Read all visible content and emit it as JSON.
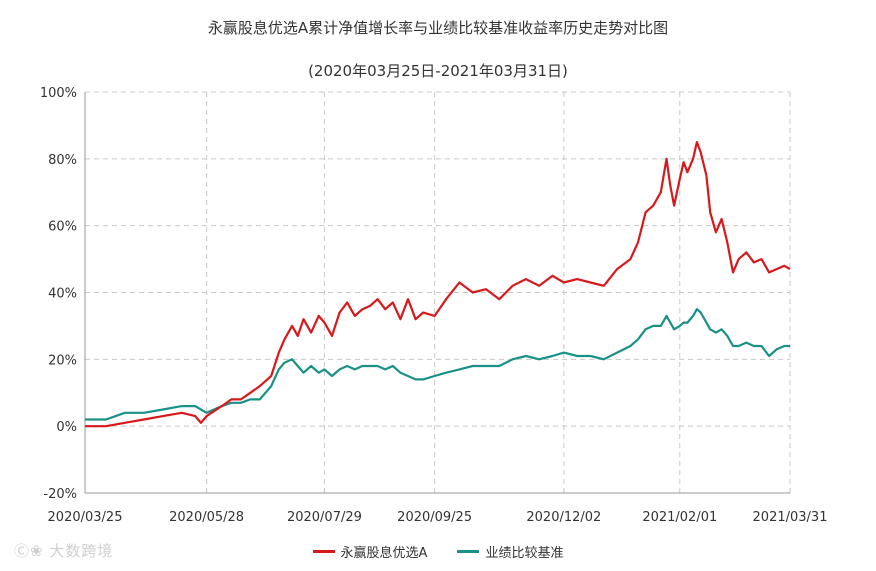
{
  "chart_data": {
    "type": "line",
    "title": "永赢股息优选A累计净值增长率与业绩比较基准收益率历史走势对比图",
    "subtitle": "(2020年03月25日-2021年03月31日)",
    "ylim": [
      -20,
      100
    ],
    "y_ticks": [
      "100%",
      "80%",
      "60%",
      "40%",
      "20%",
      "0%",
      "-20%"
    ],
    "y_tick_values": [
      100,
      80,
      60,
      40,
      20,
      0,
      -20
    ],
    "x_ticks": [
      "2020/03/25",
      "2020/05/28",
      "2020/07/29",
      "2020/09/25",
      "2020/12/02",
      "2021/02/01",
      "2021/03/31"
    ],
    "x_tick_dates": [
      "2020-03-25",
      "2020-05-28",
      "2020-07-29",
      "2020-09-25",
      "2020-12-02",
      "2021-02-01",
      "2021-03-31"
    ],
    "grid": true,
    "legend_position": "bottom",
    "series": [
      {
        "name": "永赢股息优选A",
        "color": "#d7191c",
        "points": [
          [
            "2020-03-25",
            0
          ],
          [
            "2020-04-05",
            0
          ],
          [
            "2020-04-15",
            1
          ],
          [
            "2020-04-25",
            2
          ],
          [
            "2020-05-05",
            3
          ],
          [
            "2020-05-15",
            4
          ],
          [
            "2020-05-22",
            3
          ],
          [
            "2020-05-25",
            1
          ],
          [
            "2020-05-28",
            3
          ],
          [
            "2020-06-05",
            6
          ],
          [
            "2020-06-10",
            8
          ],
          [
            "2020-06-15",
            8
          ],
          [
            "2020-06-20",
            10
          ],
          [
            "2020-06-25",
            12
          ],
          [
            "2020-07-01",
            15
          ],
          [
            "2020-07-05",
            22
          ],
          [
            "2020-07-08",
            26
          ],
          [
            "2020-07-12",
            30
          ],
          [
            "2020-07-15",
            27
          ],
          [
            "2020-07-18",
            32
          ],
          [
            "2020-07-22",
            28
          ],
          [
            "2020-07-26",
            33
          ],
          [
            "2020-07-29",
            31
          ],
          [
            "2020-08-02",
            27
          ],
          [
            "2020-08-06",
            34
          ],
          [
            "2020-08-10",
            37
          ],
          [
            "2020-08-14",
            33
          ],
          [
            "2020-08-18",
            35
          ],
          [
            "2020-08-22",
            36
          ],
          [
            "2020-08-26",
            38
          ],
          [
            "2020-08-30",
            35
          ],
          [
            "2020-09-03",
            37
          ],
          [
            "2020-09-07",
            32
          ],
          [
            "2020-09-11",
            38
          ],
          [
            "2020-09-15",
            32
          ],
          [
            "2020-09-19",
            34
          ],
          [
            "2020-09-25",
            33
          ],
          [
            "2020-10-01",
            38
          ],
          [
            "2020-10-08",
            43
          ],
          [
            "2020-10-15",
            40
          ],
          [
            "2020-10-22",
            41
          ],
          [
            "2020-10-29",
            38
          ],
          [
            "2020-11-05",
            42
          ],
          [
            "2020-11-12",
            44
          ],
          [
            "2020-11-19",
            42
          ],
          [
            "2020-11-26",
            45
          ],
          [
            "2020-12-02",
            43
          ],
          [
            "2020-12-09",
            44
          ],
          [
            "2020-12-16",
            43
          ],
          [
            "2020-12-23",
            42
          ],
          [
            "2020-12-30",
            47
          ],
          [
            "2021-01-06",
            50
          ],
          [
            "2021-01-10",
            55
          ],
          [
            "2021-01-14",
            64
          ],
          [
            "2021-01-18",
            66
          ],
          [
            "2021-01-22",
            70
          ],
          [
            "2021-01-25",
            80
          ],
          [
            "2021-01-27",
            72
          ],
          [
            "2021-01-29",
            66
          ],
          [
            "2021-02-01",
            74
          ],
          [
            "2021-02-03",
            79
          ],
          [
            "2021-02-05",
            76
          ],
          [
            "2021-02-08",
            80
          ],
          [
            "2021-02-10",
            85
          ],
          [
            "2021-02-12",
            82
          ],
          [
            "2021-02-15",
            75
          ],
          [
            "2021-02-17",
            64
          ],
          [
            "2021-02-20",
            58
          ],
          [
            "2021-02-23",
            62
          ],
          [
            "2021-02-26",
            55
          ],
          [
            "2021-03-01",
            46
          ],
          [
            "2021-03-04",
            50
          ],
          [
            "2021-03-08",
            52
          ],
          [
            "2021-03-12",
            49
          ],
          [
            "2021-03-16",
            50
          ],
          [
            "2021-03-20",
            46
          ],
          [
            "2021-03-24",
            47
          ],
          [
            "2021-03-28",
            48
          ],
          [
            "2021-03-31",
            47
          ]
        ]
      },
      {
        "name": "业绩比较基准",
        "color": "#1a9188",
        "points": [
          [
            "2020-03-25",
            2
          ],
          [
            "2020-04-05",
            2
          ],
          [
            "2020-04-15",
            4
          ],
          [
            "2020-04-25",
            4
          ],
          [
            "2020-05-05",
            5
          ],
          [
            "2020-05-15",
            6
          ],
          [
            "2020-05-22",
            6
          ],
          [
            "2020-05-25",
            5
          ],
          [
            "2020-05-28",
            4
          ],
          [
            "2020-06-05",
            6
          ],
          [
            "2020-06-10",
            7
          ],
          [
            "2020-06-15",
            7
          ],
          [
            "2020-06-20",
            8
          ],
          [
            "2020-06-25",
            8
          ],
          [
            "2020-07-01",
            12
          ],
          [
            "2020-07-05",
            17
          ],
          [
            "2020-07-08",
            19
          ],
          [
            "2020-07-12",
            20
          ],
          [
            "2020-07-15",
            18
          ],
          [
            "2020-07-18",
            16
          ],
          [
            "2020-07-22",
            18
          ],
          [
            "2020-07-26",
            16
          ],
          [
            "2020-07-29",
            17
          ],
          [
            "2020-08-02",
            15
          ],
          [
            "2020-08-06",
            17
          ],
          [
            "2020-08-10",
            18
          ],
          [
            "2020-08-14",
            17
          ],
          [
            "2020-08-18",
            18
          ],
          [
            "2020-08-22",
            18
          ],
          [
            "2020-08-26",
            18
          ],
          [
            "2020-08-30",
            17
          ],
          [
            "2020-09-03",
            18
          ],
          [
            "2020-09-07",
            16
          ],
          [
            "2020-09-11",
            15
          ],
          [
            "2020-09-15",
            14
          ],
          [
            "2020-09-19",
            14
          ],
          [
            "2020-09-25",
            15
          ],
          [
            "2020-10-01",
            16
          ],
          [
            "2020-10-08",
            17
          ],
          [
            "2020-10-15",
            18
          ],
          [
            "2020-10-22",
            18
          ],
          [
            "2020-10-29",
            18
          ],
          [
            "2020-11-05",
            20
          ],
          [
            "2020-11-12",
            21
          ],
          [
            "2020-11-19",
            20
          ],
          [
            "2020-11-26",
            21
          ],
          [
            "2020-12-02",
            22
          ],
          [
            "2020-12-09",
            21
          ],
          [
            "2020-12-16",
            21
          ],
          [
            "2020-12-23",
            20
          ],
          [
            "2020-12-30",
            22
          ],
          [
            "2021-01-06",
            24
          ],
          [
            "2021-01-10",
            26
          ],
          [
            "2021-01-14",
            29
          ],
          [
            "2021-01-18",
            30
          ],
          [
            "2021-01-22",
            30
          ],
          [
            "2021-01-25",
            33
          ],
          [
            "2021-01-27",
            31
          ],
          [
            "2021-01-29",
            29
          ],
          [
            "2021-02-01",
            30
          ],
          [
            "2021-02-03",
            31
          ],
          [
            "2021-02-05",
            31
          ],
          [
            "2021-02-08",
            33
          ],
          [
            "2021-02-10",
            35
          ],
          [
            "2021-02-12",
            34
          ],
          [
            "2021-02-15",
            31
          ],
          [
            "2021-02-17",
            29
          ],
          [
            "2021-02-20",
            28
          ],
          [
            "2021-02-23",
            29
          ],
          [
            "2021-02-26",
            27
          ],
          [
            "2021-03-01",
            24
          ],
          [
            "2021-03-04",
            24
          ],
          [
            "2021-03-08",
            25
          ],
          [
            "2021-03-12",
            24
          ],
          [
            "2021-03-16",
            24
          ],
          [
            "2021-03-20",
            21
          ],
          [
            "2021-03-24",
            23
          ],
          [
            "2021-03-28",
            24
          ],
          [
            "2021-03-31",
            24
          ]
        ]
      }
    ]
  },
  "watermark": {
    "icon": "logo-icon",
    "text": "大数跨境"
  }
}
